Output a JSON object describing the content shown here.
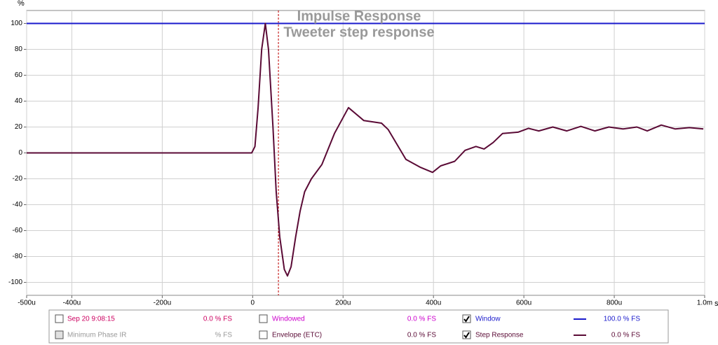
{
  "chart_data": {
    "type": "line",
    "title": "Impulse Response",
    "subtitle": "Tweeter step response",
    "y_unit": "%",
    "x_unit": "s",
    "xlim": [
      -500,
      1000
    ],
    "ylim": [
      -110,
      110
    ],
    "xticks": [
      {
        "value": -500,
        "label": "-500u"
      },
      {
        "value": -400,
        "label": "-400u"
      },
      {
        "value": -200,
        "label": "-200u"
      },
      0,
      {
        "value": 200,
        "label": "200u"
      },
      {
        "value": 400,
        "label": "400u"
      },
      {
        "value": 600,
        "label": "600u"
      },
      {
        "value": 800,
        "label": "800u"
      },
      {
        "value": 1000,
        "label": "1.0m"
      }
    ],
    "yticks": [
      -100,
      -80,
      -60,
      -40,
      -20,
      0,
      20,
      40,
      60,
      80,
      100
    ],
    "grid": true,
    "cursor_x": 57,
    "cursor_color": "#c00000",
    "series": [
      {
        "name": "Window",
        "color": "#1a1acc",
        "reading": "100.0 % FS",
        "checked": true,
        "x": [
          -500,
          1000
        ],
        "values": [
          100,
          100
        ]
      },
      {
        "name": "Step Response",
        "color": "#5a0a35",
        "reading": "0.0 % FS",
        "checked": true,
        "x": [
          -500,
          -100,
          -2,
          5,
          12,
          20,
          28,
          35,
          45,
          52,
          60,
          70,
          77,
          85,
          95,
          105,
          115,
          130,
          153,
          181,
          212,
          246,
          285,
          300,
          339,
          370,
          398,
          416,
          447,
          470,
          494,
          512,
          532,
          553,
          587,
          610,
          633,
          664,
          695,
          726,
          757,
          788,
          819,
          850,
          873,
          904,
          935,
          966,
          997
        ],
        "values": [
          0,
          0,
          0,
          5,
          35,
          80,
          100,
          80,
          20,
          -30,
          -65,
          -90,
          -95,
          -88,
          -65,
          -45,
          -30,
          -20,
          -9,
          15,
          35,
          25,
          23,
          18,
          -5,
          -11,
          -15,
          -10,
          -6.5,
          2,
          5,
          3,
          8,
          15,
          16,
          19,
          17,
          20,
          17,
          20.5,
          17,
          20,
          18.5,
          20,
          17,
          21.5,
          18.5,
          19.5,
          18.5
        ]
      }
    ],
    "other_traces": [
      {
        "name": "Sep 20 9:08:15",
        "color": "#cc0060",
        "reading": "0.0 % FS",
        "checked": false
      },
      {
        "name": "Minimum Phase IR",
        "color": "#999999",
        "reading": "% FS",
        "checked": false
      },
      {
        "name": "Windowed",
        "color": "#cc00cc",
        "reading": "0.0 % FS",
        "checked": false
      },
      {
        "name": "Envelope (ETC)",
        "color": "#5a0a35",
        "reading": "0.0 % FS",
        "checked": false
      }
    ]
  }
}
